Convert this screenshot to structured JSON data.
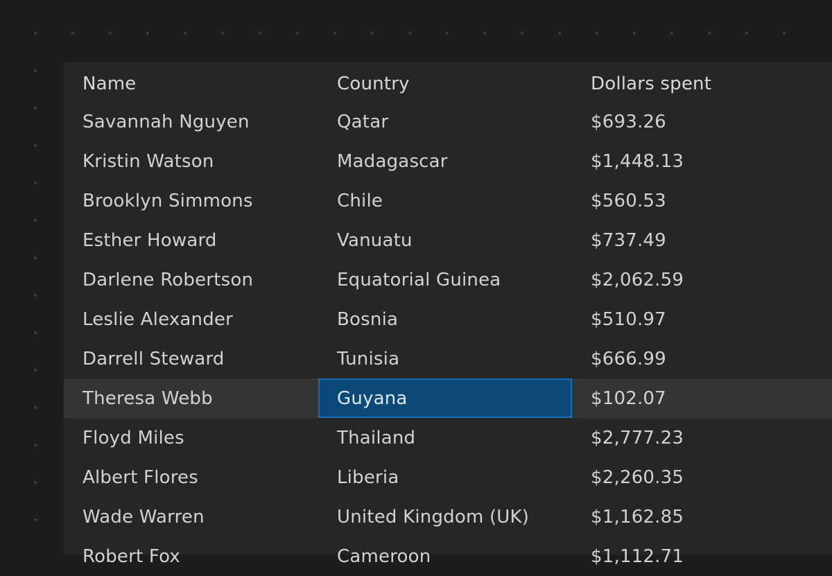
{
  "table": {
    "columns": [
      "Name",
      "Country",
      "Dollars spent"
    ],
    "rows": [
      [
        "Savannah Nguyen",
        "Qatar",
        "$693.26"
      ],
      [
        "Kristin Watson",
        "Madagascar",
        "$1,448.13"
      ],
      [
        "Brooklyn Simmons",
        "Chile",
        "$560.53"
      ],
      [
        "Esther Howard",
        "Vanuatu",
        "$737.49"
      ],
      [
        "Darlene Robertson",
        "Equatorial Guinea",
        "$2,062.59"
      ],
      [
        "Leslie Alexander",
        "Bosnia",
        "$510.97"
      ],
      [
        "Darrell Steward",
        "Tunisia",
        "$666.99"
      ],
      [
        "Theresa Webb",
        "Guyana",
        "$102.07"
      ],
      [
        "Floyd Miles",
        "Thailand",
        "$2,777.23"
      ],
      [
        "Albert Flores",
        "Liberia",
        "$2,260.35"
      ],
      [
        "Wade Warren",
        "United Kingdom (UK)",
        "$1,162.85"
      ],
      [
        "Robert Fox",
        "Cameroon",
        "$1,112.71"
      ]
    ],
    "selected_row_index": 7,
    "focused_cell": {
      "row": 7,
      "column": 1
    }
  },
  "colors": {
    "background": "#1d1d1d",
    "panel": "#262626",
    "selected_row": "#343434",
    "focused_cell": "#0b4a78",
    "focused_border": "#1a6cb8",
    "text": "#d2d2d2"
  }
}
